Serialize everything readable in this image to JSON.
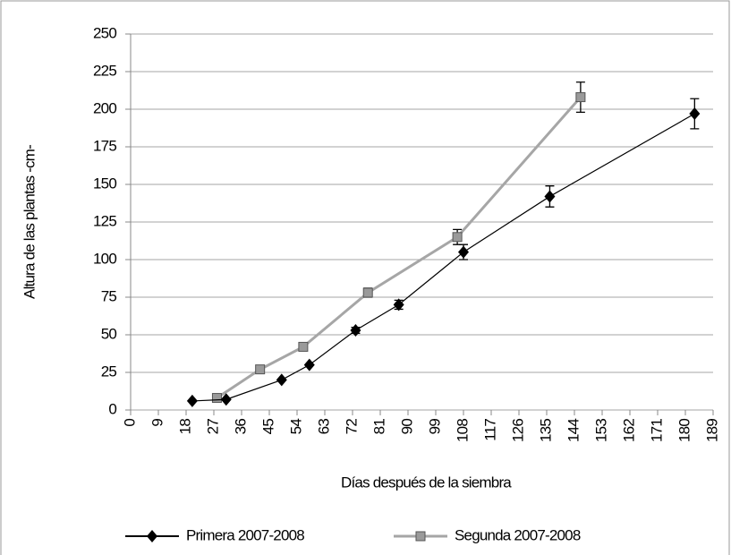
{
  "chart_data": {
    "type": "line",
    "x_label": "Días después de la siembra",
    "y_label": "Altura de las plantas -cm-",
    "xlim": [
      0,
      189
    ],
    "xticks": [
      0,
      9,
      18,
      27,
      36,
      45,
      54,
      63,
      72,
      81,
      90,
      99,
      108,
      117,
      126,
      135,
      144,
      153,
      162,
      171,
      180,
      189
    ],
    "ylim": [
      0,
      250
    ],
    "yticks": [
      0,
      25,
      50,
      75,
      100,
      125,
      150,
      175,
      200,
      225,
      250
    ],
    "grid": true,
    "legend": "bottom",
    "series": [
      {
        "name": "Primera  2007-2008",
        "color": "#000000",
        "marker": "diamond",
        "x": [
          20,
          31,
          49,
          58,
          73,
          87,
          108,
          136,
          183
        ],
        "values": [
          6,
          7,
          20,
          30,
          53,
          70,
          105,
          142,
          197
        ],
        "errors": [
          null,
          null,
          null,
          null,
          2,
          3,
          5,
          7,
          10
        ]
      },
      {
        "name": "Segunda  2007-2008",
        "color": "#a6a6a6",
        "marker": "square",
        "x": [
          28,
          42,
          56,
          77,
          106,
          146
        ],
        "values": [
          8,
          27,
          42,
          78,
          115,
          208
        ],
        "errors": [
          null,
          null,
          null,
          3,
          5,
          10
        ]
      }
    ]
  }
}
